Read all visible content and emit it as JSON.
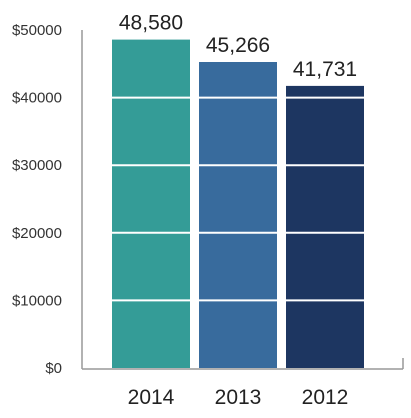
{
  "chart_data": {
    "type": "bar",
    "categories": [
      "2014",
      "2013",
      "2012"
    ],
    "values": [
      48580,
      45266,
      41731
    ],
    "data_labels": [
      "48,580",
      "45,266",
      "41,731"
    ],
    "title": "",
    "xlabel": "",
    "ylabel": "",
    "ylim": [
      0,
      50000
    ],
    "yticks": [
      0,
      10000,
      20000,
      30000,
      40000,
      50000
    ],
    "ytick_labels": [
      "$0",
      "$10000",
      "$20000",
      "$30000",
      "$40000",
      "$50000"
    ],
    "grid": "white lines across bars",
    "legend": "none",
    "colors": [
      "#349c97",
      "#386b9d",
      "#1d3661"
    ],
    "axis_color": "#999999",
    "gridline_color": "#ffffff"
  }
}
